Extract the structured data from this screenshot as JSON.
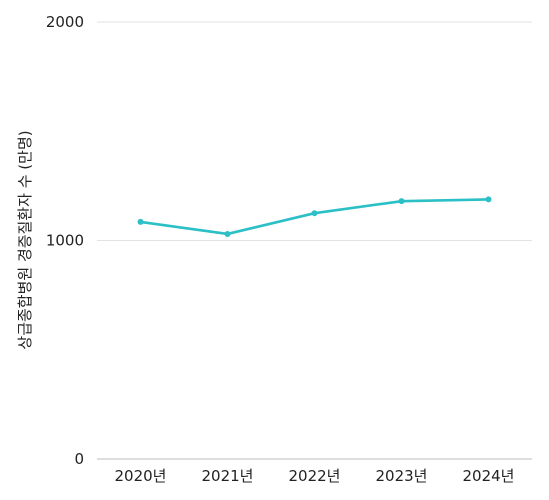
{
  "chart_data": {
    "type": "line",
    "title": "",
    "xlabel": "",
    "ylabel": "상급종합병원 경증질환자 수 (만명)",
    "categories": [
      "2020년",
      "2021년",
      "2022년",
      "2023년",
      "2024년"
    ],
    "series": [
      {
        "values": [
          1085,
          1030,
          1125,
          1180,
          1188
        ]
      }
    ],
    "ylim": [
      0,
      2000
    ],
    "yticks": [
      0,
      1000,
      2000
    ],
    "grid": true,
    "legend": "none",
    "colors": {
      "line": "#2bbfc6",
      "grid": "#e3e3e3",
      "text": "#222222"
    }
  }
}
